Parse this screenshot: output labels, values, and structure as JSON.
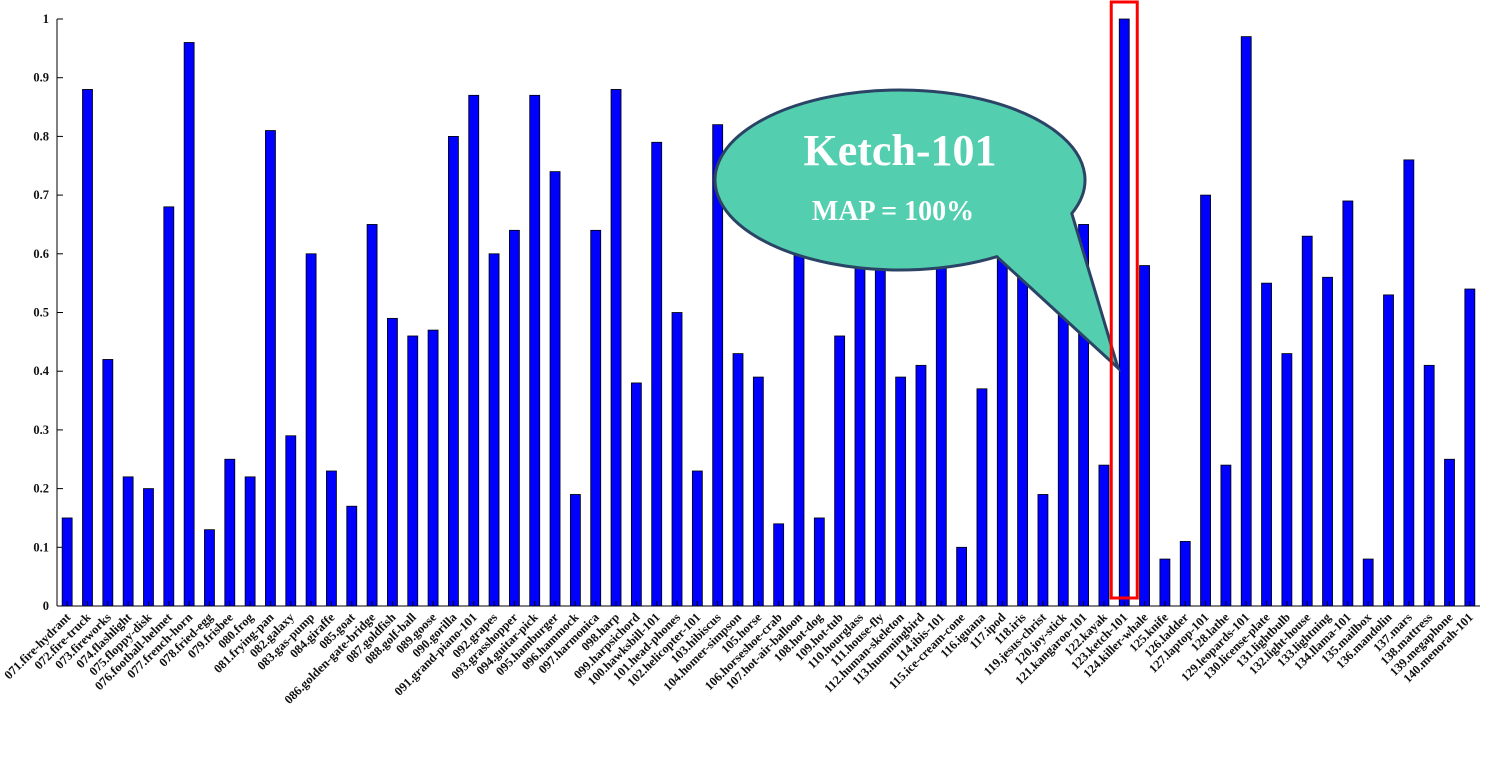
{
  "chart_data": {
    "type": "bar",
    "ylim": [
      0,
      1
    ],
    "yticks": [
      "0",
      "0.1",
      "0.2",
      "0.3",
      "0.4",
      "0.5",
      "0.6",
      "0.7",
      "0.8",
      "0.9",
      "1"
    ],
    "bar_color": "#0000ff",
    "highlight_color": "#ff0000",
    "highlight_category": "123.ketch-101",
    "grid": false,
    "categories": [
      "071.fire-hydrant",
      "072.fire-truck",
      "073.fireworks",
      "074.flashlight",
      "075.floppy-disk",
      "076.football-helmet",
      "077.french-horn",
      "078.fried-egg",
      "079.frisbee",
      "080.frog",
      "081.frying-pan",
      "082.galaxy",
      "083.gas-pump",
      "084.giraffe",
      "085.goat",
      "086.golden-gate-bridge",
      "087.goldfish",
      "088.golf-ball",
      "089.goose",
      "090.gorilla",
      "091.grand-piano-101",
      "092.grapes",
      "093.grasshopper",
      "094.guitar-pick",
      "095.hamburger",
      "096.hammock",
      "097.harmonica",
      "098.harp",
      "099.harpsichord",
      "100.hawksbill-101",
      "101.head-phones",
      "102.helicopter-101",
      "103.hibiscus",
      "104.homer-simpson",
      "105.horse",
      "106.horseshoe-crab",
      "107.hot-air-balloon",
      "108.hot-dog",
      "109.hot-tub",
      "110.hourglass",
      "111.house-fly",
      "112.human-skeleton",
      "113.hummingbird",
      "114.ibis-101",
      "115.ice-cream-cone",
      "116.iguana",
      "117.ipod",
      "118.iris",
      "119.jesus-christ",
      "120.joy-stick",
      "121.kangaroo-101",
      "122.kayak",
      "123.ketch-101",
      "124.killer-whale",
      "125.knife",
      "126.ladder",
      "127.laptop-101",
      "128.lathe",
      "129.leopards-101",
      "130.license-plate",
      "131.lightbulb",
      "132.light-house",
      "133.lightning",
      "134.llama-101",
      "135.mailbox",
      "136.mandolin",
      "137.mars",
      "138.mattress",
      "139.megaphone",
      "140.menorah-101"
    ],
    "values": [
      0.15,
      0.88,
      0.42,
      0.22,
      0.2,
      0.68,
      0.96,
      0.13,
      0.25,
      0.22,
      0.81,
      0.29,
      0.6,
      0.23,
      0.17,
      0.65,
      0.49,
      0.46,
      0.47,
      0.8,
      0.87,
      0.6,
      0.64,
      0.87,
      0.74,
      0.19,
      0.64,
      0.88,
      0.38,
      0.79,
      0.5,
      0.23,
      0.82,
      0.43,
      0.39,
      0.14,
      0.6,
      0.15,
      0.46,
      0.6,
      0.6,
      0.39,
      0.41,
      0.58,
      0.1,
      0.37,
      0.6,
      0.6,
      0.19,
      0.69,
      0.65,
      0.24,
      1.0,
      0.58,
      0.08,
      0.11,
      0.7,
      0.24,
      0.97,
      0.55,
      0.43,
      0.63,
      0.56,
      0.69,
      0.08,
      0.53,
      0.76,
      0.41,
      0.25,
      0.54
    ]
  },
  "callout": {
    "title": "Ketch-101",
    "subtitle": "MAP = 100%",
    "fill": "#53cfb0",
    "stroke": "#2b4466"
  }
}
